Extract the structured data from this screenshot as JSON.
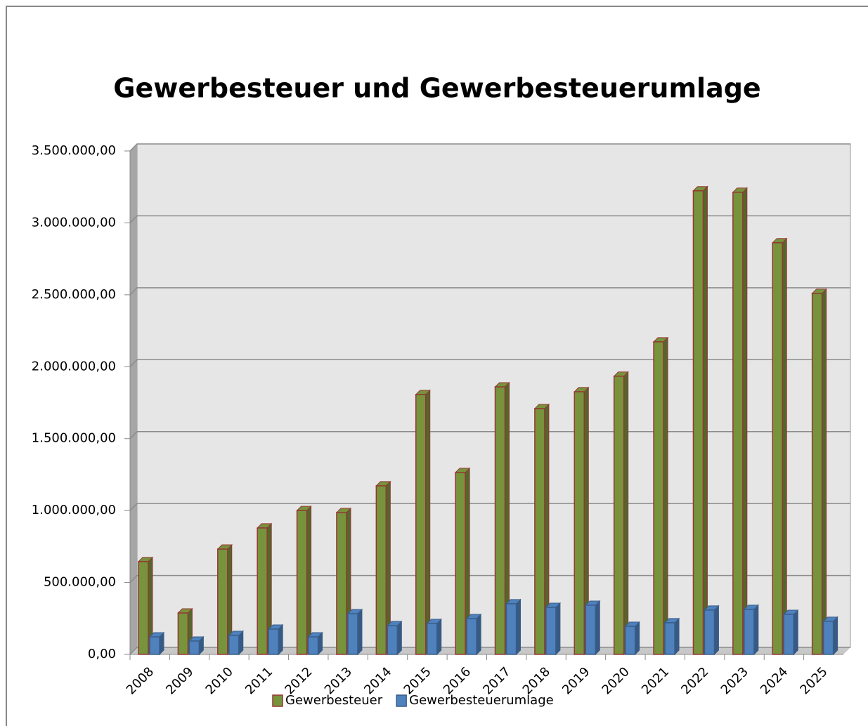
{
  "chart_data": {
    "type": "bar3d",
    "title": "Gewerbesteuer und Gewerbesteuerumlage",
    "categories": [
      "2008",
      "2009",
      "2010",
      "2011",
      "2012",
      "2013",
      "2014",
      "2015",
      "2016",
      "2017",
      "2018",
      "2019",
      "2020",
      "2021",
      "2022",
      "2023",
      "2024",
      "2025"
    ],
    "series": [
      {
        "name": "Gewerbesteuer",
        "color": "#77933c",
        "edge": "#953735",
        "values": [
          645000,
          288000,
          732000,
          879000,
          1000000,
          986000,
          1172000,
          1807000,
          1265000,
          1860000,
          1709000,
          1826000,
          1934000,
          2173000,
          3223000,
          3213000,
          2862000,
          2510000
        ]
      },
      {
        "name": "Gewerbesteuerumlage",
        "color": "#4f81bd",
        "edge": "#385d8a",
        "values": [
          122000,
          93000,
          132000,
          176000,
          122000,
          283000,
          200000,
          215000,
          249000,
          352000,
          327000,
          342000,
          195000,
          220000,
          308000,
          313000,
          278000,
          230000
        ]
      }
    ],
    "ylim": [
      0,
      3500000
    ],
    "yticks": [
      {
        "value": 0,
        "label": "0,00"
      },
      {
        "value": 500000,
        "label": "500.000,00"
      },
      {
        "value": 1000000,
        "label": "1.000.000,00"
      },
      {
        "value": 1500000,
        "label": "1.500.000,00"
      },
      {
        "value": 2000000,
        "label": "2.000.000,00"
      },
      {
        "value": 2500000,
        "label": "2.500.000,00"
      },
      {
        "value": 3000000,
        "label": "3.000.000,00"
      },
      {
        "value": 3500000,
        "label": "3.500.000,00"
      }
    ],
    "grid": true,
    "legend": "bottom"
  }
}
